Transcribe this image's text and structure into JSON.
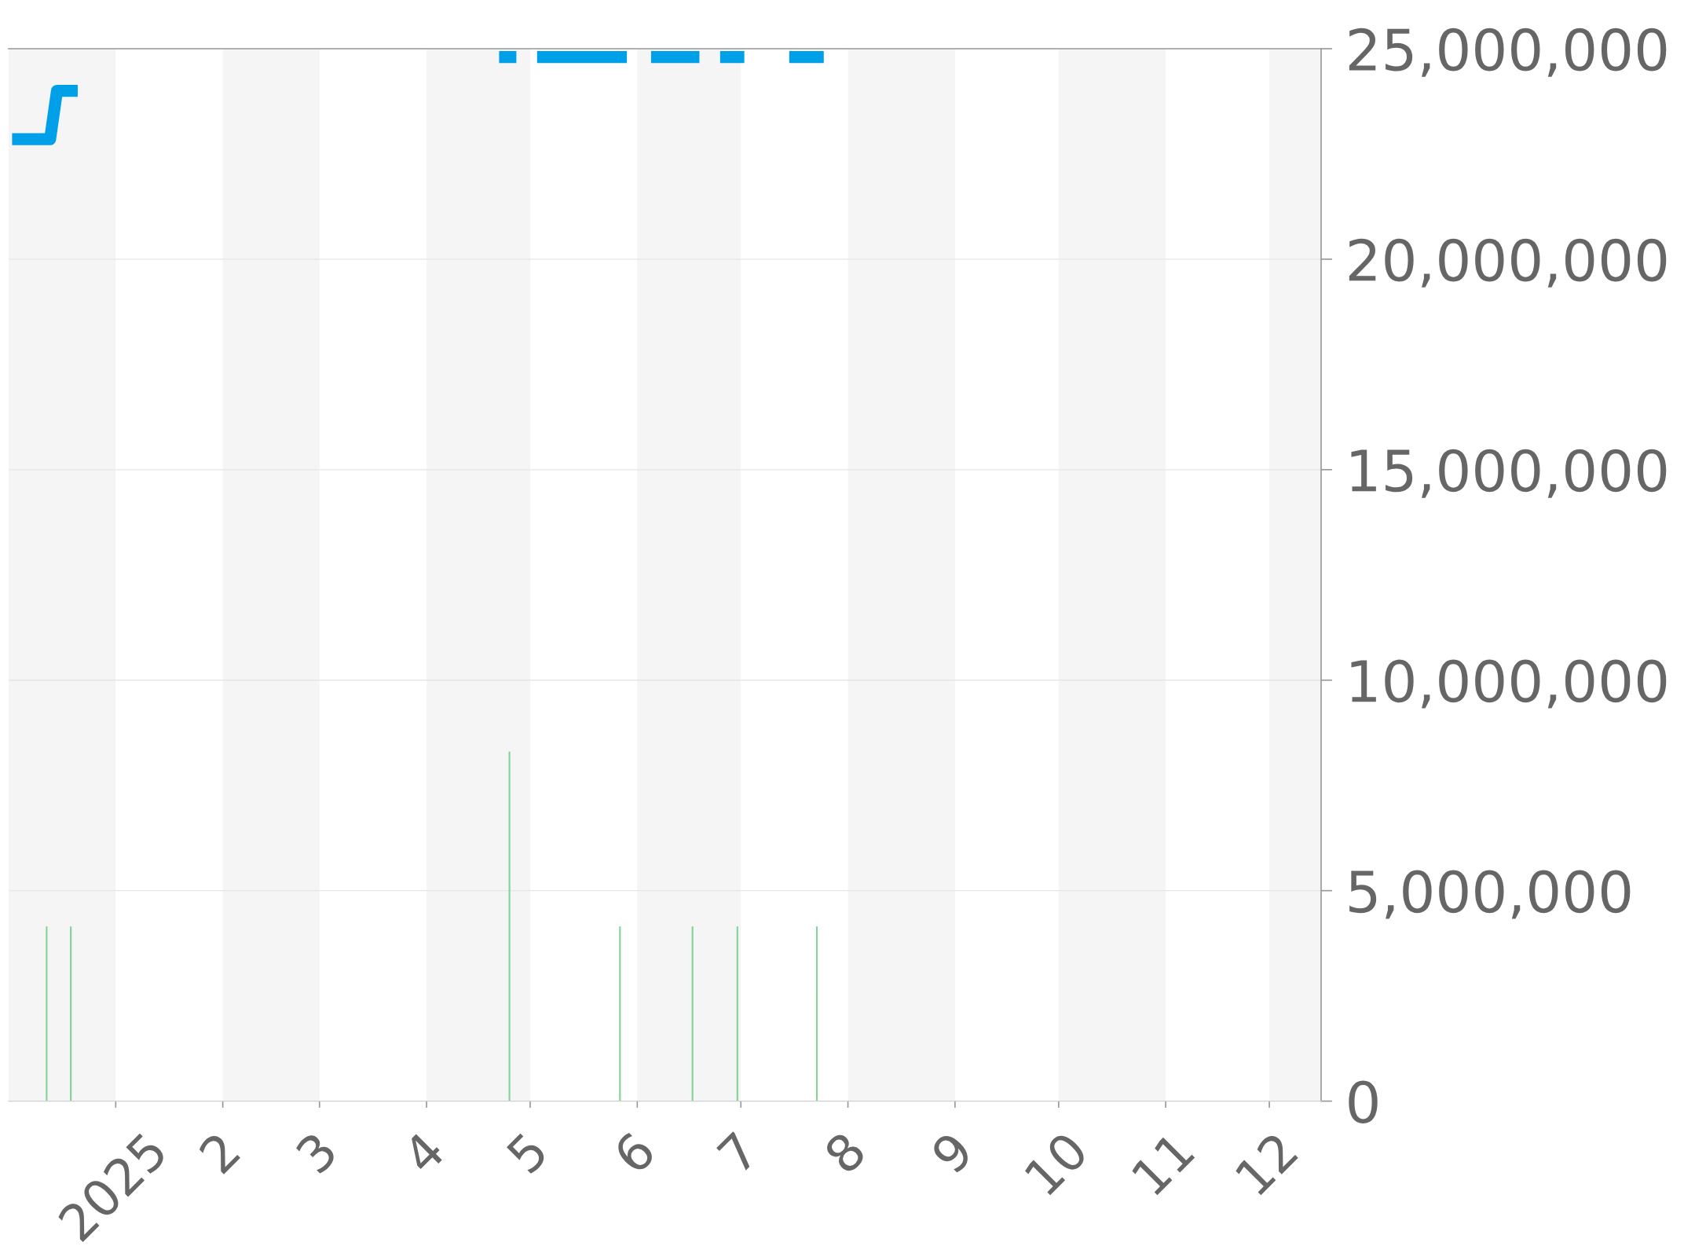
{
  "chart_data": {
    "type": "line",
    "series": [
      {
        "color": "#00a0e9",
        "x": [
          "2024-12-02",
          "2024-12-13",
          "2024-12-15",
          "2024-12-21",
          "2024-12-22",
          "2025-04-22",
          "2025-04-27",
          "2025-04-28",
          "2025-05-03",
          "2025-05-29",
          "2025-05-30",
          "2025-06-05",
          "2025-06-19",
          "2025-06-20",
          "2025-06-25",
          "2025-07-02",
          "2025-07-03",
          "2025-07-15",
          "2025-07-25"
        ],
        "values": [
          22850000,
          22850000,
          24000000,
          24000000,
          null,
          24800000,
          24800000,
          null,
          24800000,
          24800000,
          null,
          24800000,
          24800000,
          null,
          24800000,
          24800000,
          null,
          24800000,
          24800000
        ]
      },
      {
        "type": "bar",
        "color": "#87d39a",
        "x": [
          "2024-12-12",
          "2024-12-19",
          "2025-04-25",
          "2025-05-27",
          "2025-06-17",
          "2025-06-30",
          "2025-07-23"
        ],
        "values": [
          4150000,
          4150000,
          8300000,
          4150000,
          4150000,
          4150000,
          4150000
        ]
      }
    ],
    "xlim": [
      "2024-12-01",
      "2025-12-16"
    ],
    "xticks": [
      {
        "value": "2025-01-01",
        "label": "2025"
      },
      {
        "value": "2025-02-01",
        "label": "2"
      },
      {
        "value": "2025-03-01",
        "label": "3"
      },
      {
        "value": "2025-04-01",
        "label": "4"
      },
      {
        "value": "2025-05-01",
        "label": "5"
      },
      {
        "value": "2025-06-01",
        "label": "6"
      },
      {
        "value": "2025-07-01",
        "label": "7"
      },
      {
        "value": "2025-08-01",
        "label": "8"
      },
      {
        "value": "2025-09-01",
        "label": "9"
      },
      {
        "value": "2025-10-01",
        "label": "10"
      },
      {
        "value": "2025-11-01",
        "label": "11"
      },
      {
        "value": "2025-12-01",
        "label": "12"
      }
    ],
    "ylim": [
      0,
      25000000
    ],
    "yticks": [
      {
        "value": 0,
        "label": "0"
      },
      {
        "value": 5000000,
        "label": "5,000,000"
      },
      {
        "value": 10000000,
        "label": "10,000,000"
      },
      {
        "value": 15000000,
        "label": "15,000,000"
      },
      {
        "value": 20000000,
        "label": "20,000,000"
      },
      {
        "value": 25000000,
        "label": "25,000,000"
      }
    ],
    "grid": "y",
    "bands": [
      {
        "axis": "x",
        "from": "2024-12-01",
        "to": "2025-01-01",
        "color": "#f5f5f5"
      },
      {
        "axis": "x",
        "from": "2025-02-01",
        "to": "2025-03-01",
        "color": "#f5f5f5"
      },
      {
        "axis": "x",
        "from": "2025-04-01",
        "to": "2025-05-01",
        "color": "#f5f5f5"
      },
      {
        "axis": "x",
        "from": "2025-06-01",
        "to": "2025-07-01",
        "color": "#f5f5f5"
      },
      {
        "axis": "x",
        "from": "2025-08-01",
        "to": "2025-09-01",
        "color": "#f5f5f5"
      },
      {
        "axis": "x",
        "from": "2025-10-01",
        "to": "2025-11-01",
        "color": "#f5f5f5"
      },
      {
        "axis": "x",
        "from": "2025-12-01",
        "to": "2025-12-16",
        "color": "#f5f5f5"
      }
    ]
  }
}
